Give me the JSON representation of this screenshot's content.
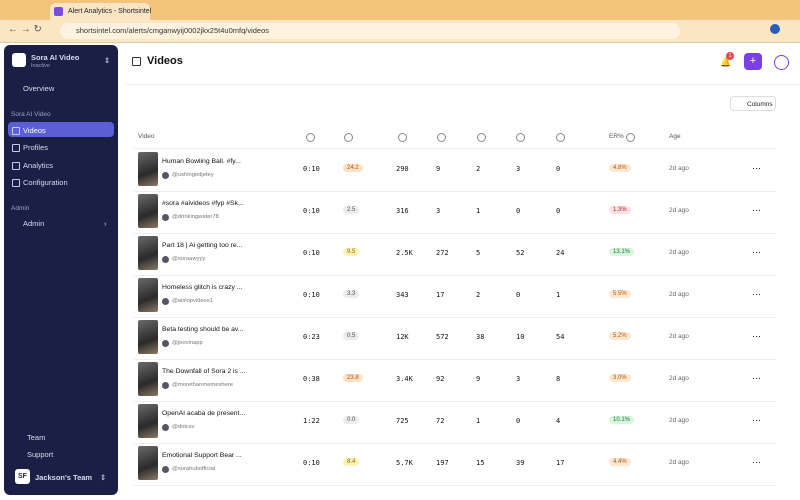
{
  "browser": {
    "tab_title": "Alert Analytics - Shortsintel",
    "url": "shortsintel.com/alerts/cmganwyij0002jkx25t4u0mfq/videos"
  },
  "sidebar": {
    "workspace": {
      "name": "Sora AI Video",
      "status": "Inactive"
    },
    "overview": "Overview",
    "section": "Sora AI Video",
    "nav": [
      "Videos",
      "Profiles",
      "Analytics",
      "Configuration"
    ],
    "admin_section": "Admin",
    "admin": "Admin",
    "footer": [
      "Team",
      "Support"
    ],
    "team": {
      "initials": "SF",
      "name": "Jackson's Team"
    }
  },
  "header": {
    "title": "Videos",
    "notifications": 1
  },
  "toolbar": {
    "columns": "Columns"
  },
  "table": {
    "columns": [
      "Video",
      "ER%",
      "Age"
    ],
    "rows": [
      {
        "title": "Human Bowling Ball. #fy...",
        "handle": "@ushingedjetey",
        "duration": "0:10",
        "score": "24.2",
        "views": "290",
        "likes": "9",
        "comments": "2",
        "shares": "3",
        "saves": "0",
        "er": "4.8%",
        "age": "2d ago"
      },
      {
        "title": "#sora #aivideos #fyp #Sk...",
        "handle": "@drinkingwater78",
        "duration": "0:10",
        "score": "2.5",
        "views": "316",
        "likes": "3",
        "comments": "1",
        "shares": "0",
        "saves": "0",
        "er": "1.3%",
        "age": "2d ago"
      },
      {
        "title": "Part 18 | Ai getting too re...",
        "handle": "@soraawyyy",
        "duration": "0:10",
        "score": "9.5",
        "views": "2.5K",
        "likes": "272",
        "comments": "5",
        "shares": "52",
        "saves": "24",
        "er": "13.1%",
        "age": "2d ago"
      },
      {
        "title": "Homeless glitch is crazy ...",
        "handle": "@aislopvideos1",
        "duration": "0:10",
        "score": "3.3",
        "views": "343",
        "likes": "17",
        "comments": "2",
        "shares": "0",
        "saves": "1",
        "er": "5.5%",
        "age": "2d ago"
      },
      {
        "title": "Beta testing should be av...",
        "handle": "@joovinapp",
        "duration": "0:23",
        "score": "0.5",
        "views": "12K",
        "likes": "572",
        "comments": "38",
        "shares": "10",
        "saves": "54",
        "er": "5.2%",
        "age": "2d ago"
      },
      {
        "title": "The Downfall of Sora 2 is ...",
        "handle": "@morethanmemeshere",
        "duration": "0:38",
        "score": "23.8",
        "views": "3.4K",
        "likes": "92",
        "comments": "9",
        "shares": "3",
        "saves": "8",
        "er": "3.0%",
        "age": "2d ago"
      },
      {
        "title": "OpenAI acaba de present...",
        "handle": "@dotcsv",
        "duration": "1:22",
        "score": "0.0",
        "views": "725",
        "likes": "72",
        "comments": "1",
        "shares": "0",
        "saves": "4",
        "er": "10.1%",
        "age": "2d ago"
      },
      {
        "title": "Emotional Support Bear ...",
        "handle": "@sorahubofficial",
        "duration": "0:10",
        "score": "8.4",
        "views": "5.7K",
        "likes": "197",
        "comments": "15",
        "shares": "39",
        "saves": "17",
        "er": "4.4%",
        "age": "2d ago"
      }
    ]
  }
}
